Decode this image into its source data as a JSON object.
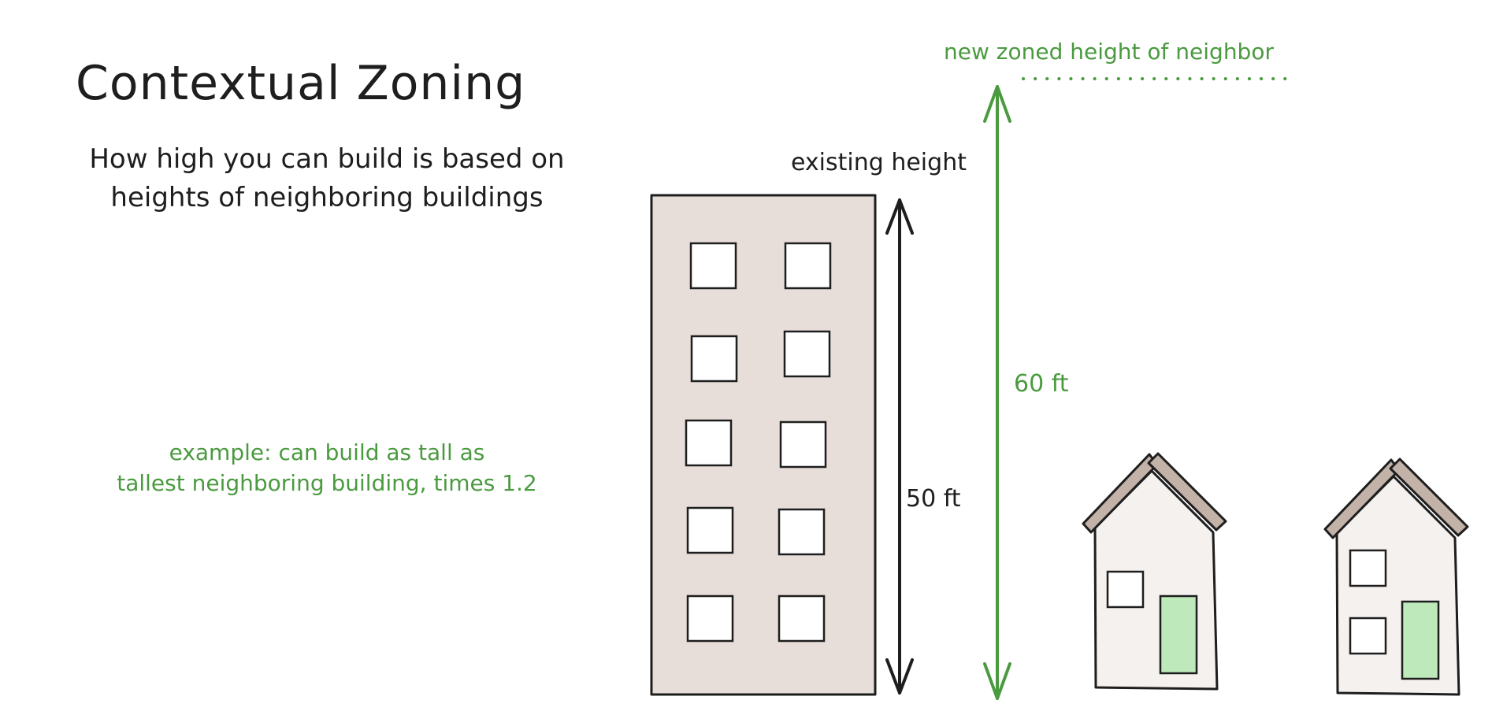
{
  "title": "Contextual Zoning",
  "subtitle_lines": [
    "How high you can build is based on",
    "heights of neighboring buildings"
  ],
  "example_lines": [
    "example: can build as tall as",
    "tallest neighboring building, times 1.2"
  ],
  "labels": {
    "existing_height": "existing height",
    "height_50": "50 ft",
    "height_60": "60 ft",
    "new_zoned_height": "new zoned height of neighbor"
  },
  "colors": {
    "ink": "#1e1e1e",
    "green": "#4a9a3f",
    "building_fill": "#e7ddd9",
    "house_fill": "#f5f1ee",
    "roof_fill": "#c2b2a8",
    "door_fill": "#bde9bb",
    "window_fill": "#ffffff"
  }
}
